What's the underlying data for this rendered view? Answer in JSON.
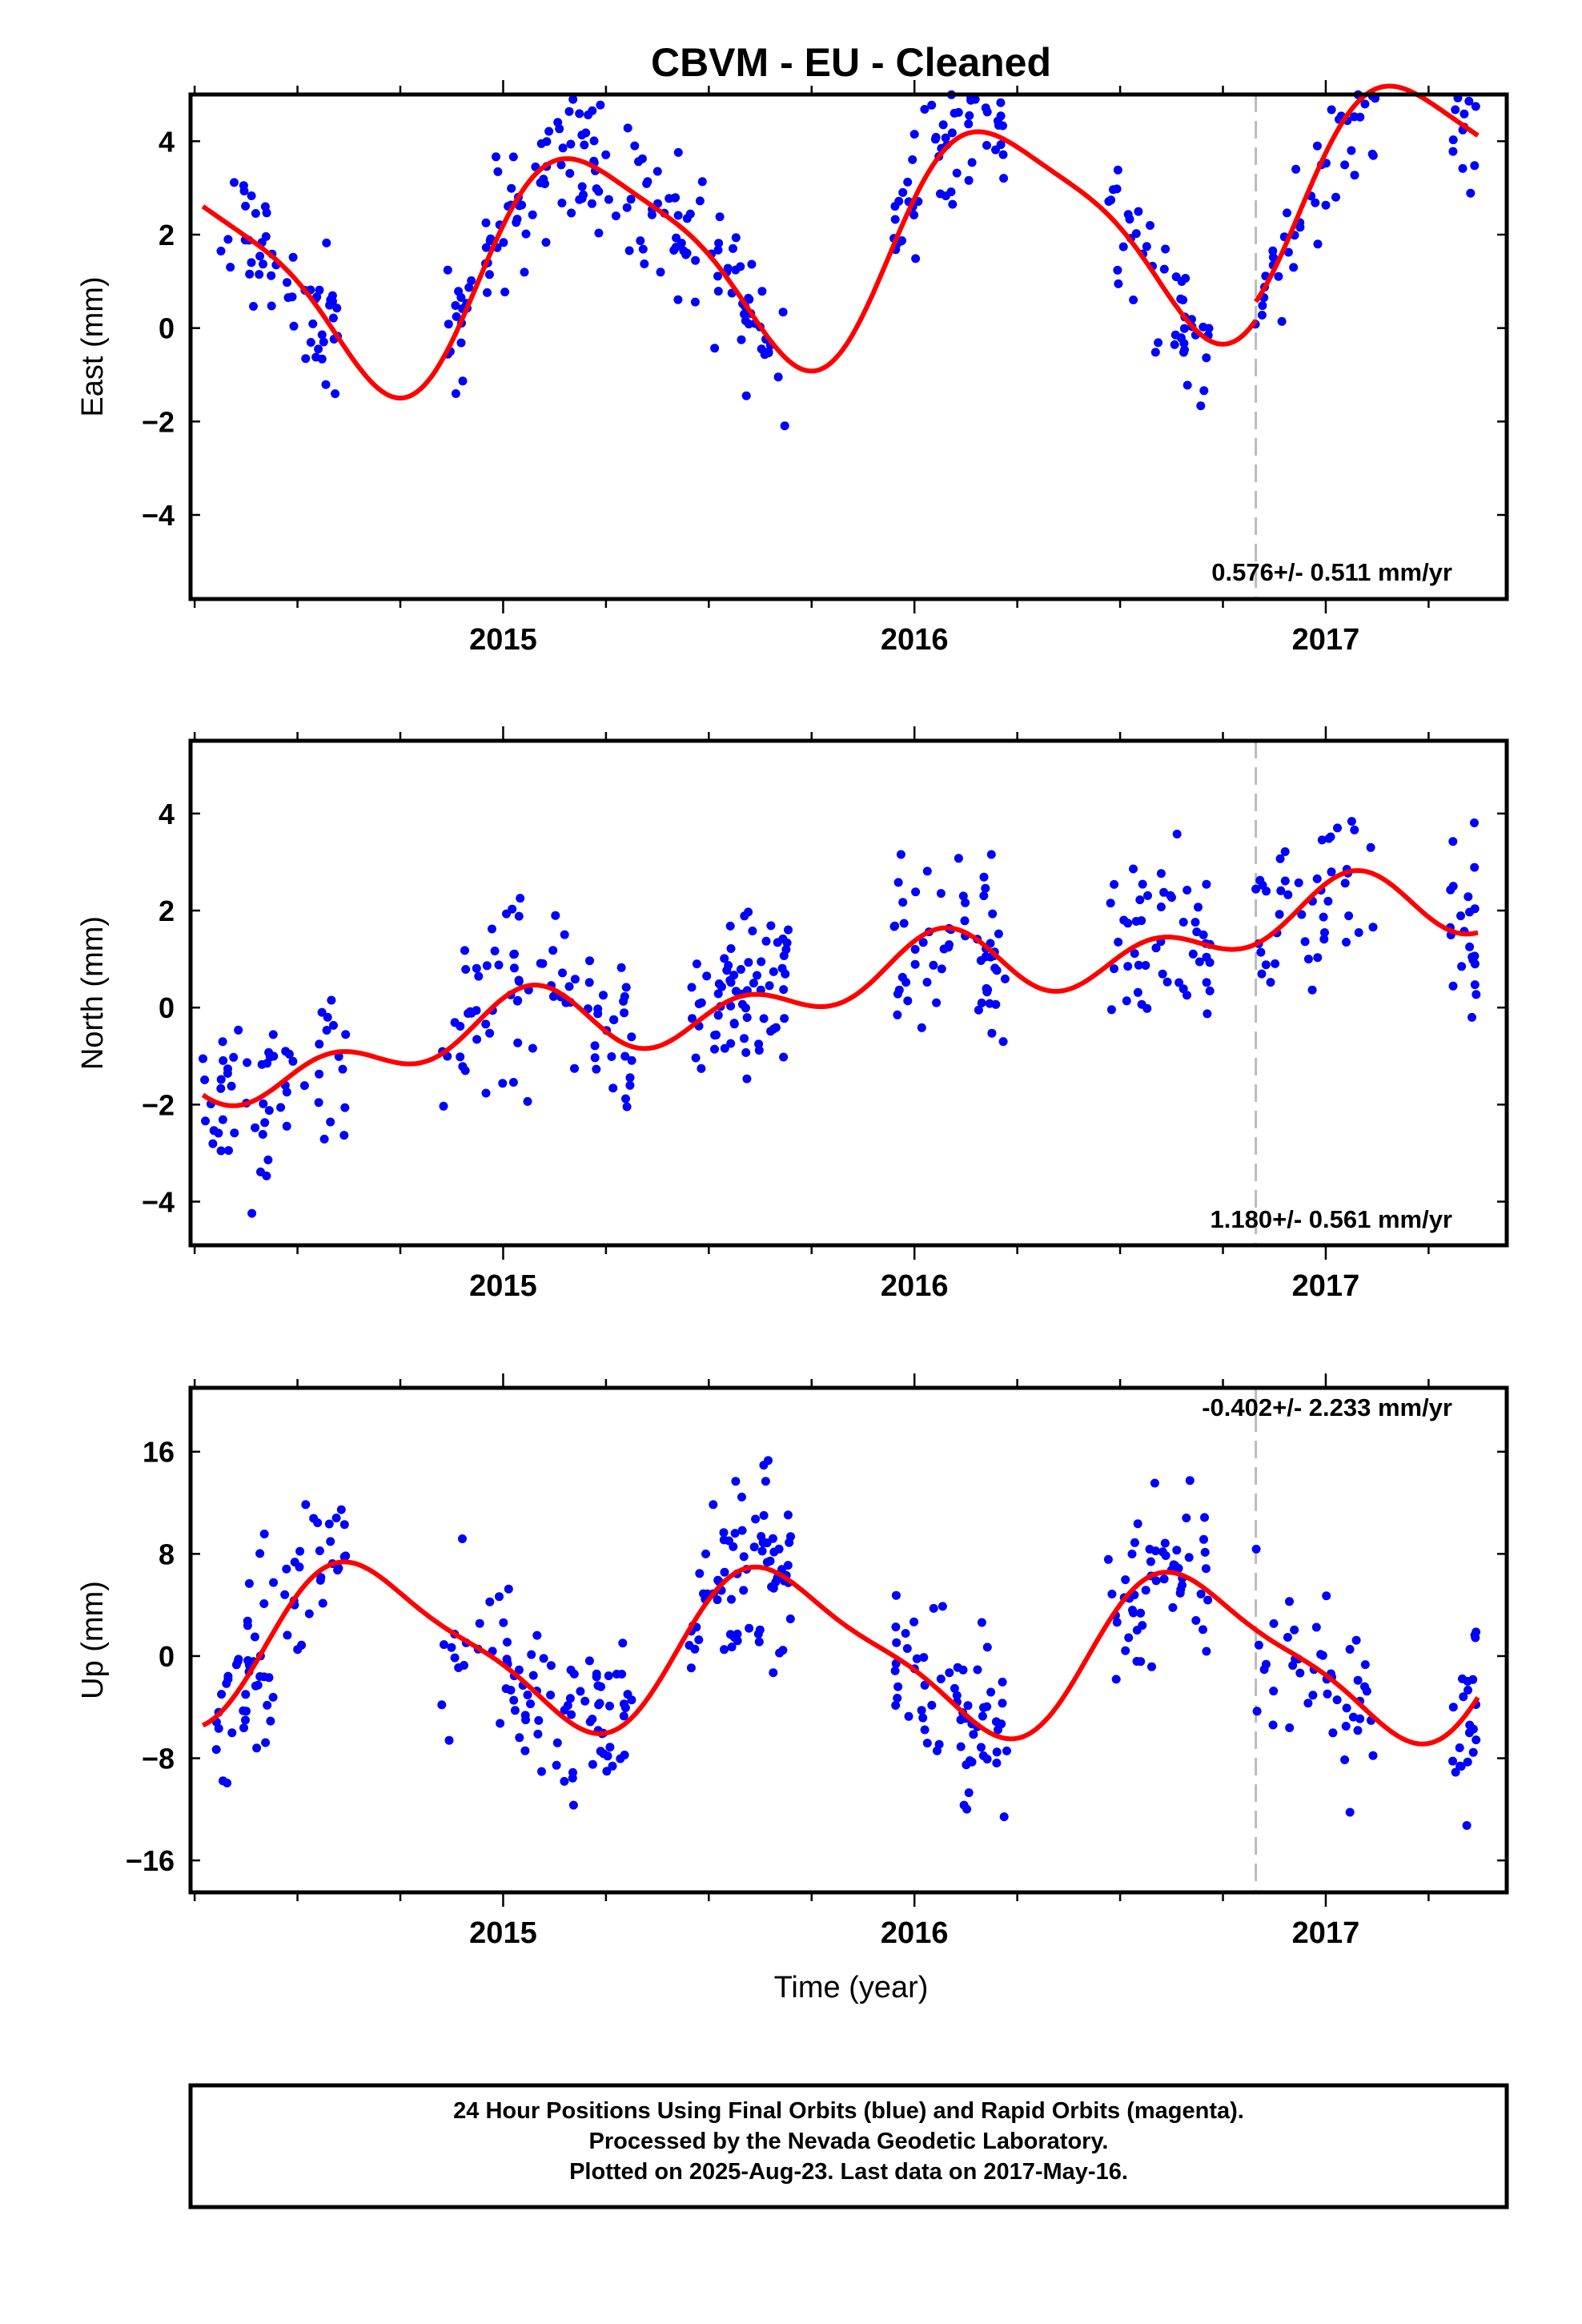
{
  "title": "CBVM  - EU - Cleaned",
  "xlabel": "Time (year)",
  "colors": {
    "points": "#0000ff",
    "model": "#ff0000",
    "break": "#bbbbbb",
    "frame": "#000000"
  },
  "footer": {
    "line1": "24 Hour Positions Using Final Orbits (blue) and Rapid Orbits (magenta).",
    "line2": "Processed by the Nevada Geodetic Laboratory.",
    "line3": "Plotted on 2025-Aug-23. Last data on 2017-May-16."
  },
  "chart_data": [
    {
      "type": "scatter",
      "ylabel": "East (mm)",
      "rate_text": "0.576+/- 0.511 mm/yr",
      "xlim": [
        2014.24,
        2017.44
      ],
      "ylim": [
        -5.8,
        5.0
      ],
      "xticks": [
        "2015",
        "2016",
        "2017"
      ],
      "yticks": [
        4,
        2,
        0,
        -2,
        -4
      ],
      "yticklabels": [
        "4",
        "2",
        "0",
        "−2",
        "−4"
      ],
      "break_x": 2016.83,
      "segments": [
        {
          "x0": 2014.27,
          "x1": 2016.83,
          "y0": 0.9
        },
        {
          "x0": 2016.83,
          "x1": 2017.37,
          "y0": 1.3
        }
      ],
      "trend": 0.576,
      "amp1": 2.3,
      "phase1": 0.2,
      "amp2": 0.5,
      "phase2": 1.0,
      "scatter_sd": 0.75,
      "point_groups": [
        [
          2014.3,
          2014.6,
          55
        ],
        [
          2014.85,
          2015.28,
          85
        ],
        [
          2015.3,
          2015.7,
          75
        ],
        [
          2015.95,
          2016.23,
          55
        ],
        [
          2016.47,
          2016.72,
          45
        ],
        [
          2016.82,
          2017.12,
          45
        ],
        [
          2017.3,
          2017.37,
          22
        ]
      ],
      "grid": false
    },
    {
      "type": "scatter",
      "ylabel": "North (mm)",
      "rate_text": "1.180+/- 0.561 mm/yr",
      "xlim": [
        2014.24,
        2017.44
      ],
      "ylim": [
        -4.9,
        5.5
      ],
      "xticks": [
        "2015",
        "2016",
        "2017"
      ],
      "yticks": [
        4,
        2,
        0,
        -2,
        -4
      ],
      "yticklabels": [
        "4",
        "2",
        "0",
        "−2",
        "−4"
      ],
      "break_x": 2016.83,
      "segments": [
        {
          "x0": 2014.27,
          "x1": 2017.37,
          "y0": -1.4
        }
      ],
      "trend": 1.18,
      "amp1": 0.45,
      "phase1": 1.5,
      "amp2": 0.5,
      "phase2": 0.6,
      "scatter_sd": 0.85,
      "point_groups": [
        [
          2014.27,
          2014.62,
          60
        ],
        [
          2014.85,
          2015.32,
          85
        ],
        [
          2015.45,
          2015.7,
          70
        ],
        [
          2015.95,
          2016.23,
          60
        ],
        [
          2016.47,
          2016.72,
          50
        ],
        [
          2016.82,
          2017.12,
          45
        ],
        [
          2017.3,
          2017.37,
          22
        ]
      ],
      "grid": false
    },
    {
      "type": "scatter",
      "ylabel": "Up (mm)",
      "rate_text": "-0.402+/- 2.233 mm/yr",
      "xlim": [
        2014.24,
        2017.44
      ],
      "ylim": [
        -18.5,
        21.0
      ],
      "xticks": [
        "2015",
        "2016",
        "2017"
      ],
      "yticks": [
        16,
        8,
        0,
        -8,
        -16
      ],
      "yticklabels": [
        "16",
        "8",
        "0",
        "−8",
        "−16"
      ],
      "break_x": 2016.83,
      "segments": [
        {
          "x0": 2014.27,
          "x1": 2017.37,
          "y0": 1.0
        }
      ],
      "trend": -0.402,
      "amp1": 6.0,
      "phase1": 3.6,
      "amp2": 1.5,
      "phase2": 1.0,
      "scatter_sd": 3.4,
      "point_groups": [
        [
          2014.3,
          2014.62,
          70
        ],
        [
          2014.85,
          2015.32,
          90
        ],
        [
          2015.45,
          2015.7,
          75
        ],
        [
          2015.95,
          2016.23,
          65
        ],
        [
          2016.47,
          2016.72,
          55
        ],
        [
          2016.82,
          2017.12,
          45
        ],
        [
          2017.3,
          2017.37,
          22
        ]
      ],
      "grid": false
    }
  ]
}
